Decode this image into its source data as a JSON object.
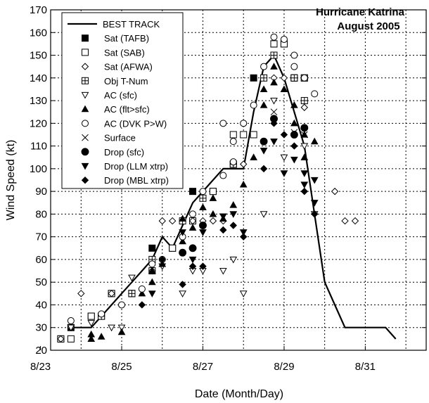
{
  "chart_data": {
    "type": "scatter",
    "title": "Hurricane Katrina",
    "subtitle": "August 2005",
    "xlabel": "Date (Month/Day)",
    "ylabel": "Wind Speed (kt)",
    "xlim": [
      "8/23 06:00",
      "9/1 12:00"
    ],
    "ylim": [
      20,
      170
    ],
    "xticks": [
      "8/23",
      "8/25",
      "8/27",
      "8/29",
      "8/31"
    ],
    "yticks": [
      20,
      30,
      40,
      50,
      60,
      70,
      80,
      90,
      100,
      110,
      120,
      130,
      140,
      150,
      160,
      170
    ],
    "grid": "dashed",
    "legend_position": "top-left",
    "legend": [
      "BEST TRACK",
      "Sat (TAFB)",
      "Sat (SAB)",
      "Sat (AFWA)",
      "Obj T-Num",
      "AC (sfc)",
      "AC (flt>sfc)",
      "AC (DVK P>W)",
      "Surface",
      "Drop (sfc)",
      "Drop (LLM xtrp)",
      "Drop (MBL xtrp)"
    ],
    "best_track": [
      [
        "8/23 18:00",
        30
      ],
      [
        "8/24 00:00",
        30
      ],
      [
        "8/24 06:00",
        30
      ],
      [
        "8/24 12:00",
        35
      ],
      [
        "8/24 18:00",
        40
      ],
      [
        "8/25 00:00",
        45
      ],
      [
        "8/25 06:00",
        50
      ],
      [
        "8/25 12:00",
        55
      ],
      [
        "8/25 18:00",
        60
      ],
      [
        "8/26 00:00",
        70
      ],
      [
        "8/26 06:00",
        65
      ],
      [
        "8/26 12:00",
        75
      ],
      [
        "8/26 18:00",
        85
      ],
      [
        "8/27 00:00",
        90
      ],
      [
        "8/27 06:00",
        95
      ],
      [
        "8/27 12:00",
        100
      ],
      [
        "8/27 18:00",
        100
      ],
      [
        "8/28 00:00",
        100
      ],
      [
        "8/28 06:00",
        125
      ],
      [
        "8/28 12:00",
        145
      ],
      [
        "8/28 18:00",
        150
      ],
      [
        "8/29 00:00",
        140
      ],
      [
        "8/29 06:00",
        125
      ],
      [
        "8/29 12:00",
        110
      ],
      [
        "8/29 18:00",
        80
      ],
      [
        "8/30 00:00",
        50
      ],
      [
        "8/30 06:00",
        40
      ],
      [
        "8/30 12:00",
        30
      ],
      [
        "8/30 18:00",
        30
      ],
      [
        "8/31 00:00",
        30
      ],
      [
        "8/31 06:00",
        30
      ],
      [
        "8/31 12:00",
        30
      ],
      [
        "8/31 18:00",
        25
      ]
    ],
    "series": [
      {
        "name": "Sat (TAFB)",
        "points": [
          [
            "8/23 12:00",
            25
          ],
          [
            "8/23 18:00",
            30
          ],
          [
            "8/24 06:00",
            35
          ],
          [
            "8/24 12:00",
            35
          ],
          [
            "8/24 18:00",
            45
          ],
          [
            "8/25 06:00",
            45
          ],
          [
            "8/25 18:00",
            65
          ],
          [
            "8/26 06:00",
            65
          ],
          [
            "8/26 18:00",
            90
          ],
          [
            "8/27 06:00",
            90
          ],
          [
            "8/27 18:00",
            102
          ],
          [
            "8/28 06:00",
            140
          ],
          [
            "8/28 18:00",
            155
          ],
          [
            "8/29 00:00",
            155
          ],
          [
            "8/29 06:00",
            140
          ],
          [
            "8/29 12:00",
            140
          ]
        ]
      },
      {
        "name": "Sat (SAB)",
        "points": [
          [
            "8/23 12:00",
            25
          ],
          [
            "8/23 18:00",
            25
          ],
          [
            "8/24 06:00",
            35
          ],
          [
            "8/24 18:00",
            45
          ],
          [
            "8/25 06:00",
            45
          ],
          [
            "8/25 18:00",
            55
          ],
          [
            "8/26 06:00",
            65
          ],
          [
            "8/26 18:00",
            77
          ],
          [
            "8/27 06:00",
            90
          ],
          [
            "8/27 18:00",
            115
          ],
          [
            "8/28 00:00",
            115
          ],
          [
            "8/28 06:00",
            115
          ],
          [
            "8/28 18:00",
            155
          ],
          [
            "8/29 00:00",
            155
          ],
          [
            "8/29 06:00",
            140
          ],
          [
            "8/29 12:00",
            140
          ]
        ]
      },
      {
        "name": "Sat (AFWA)",
        "points": [
          [
            "8/23 12:00",
            25
          ],
          [
            "8/23 18:00",
            30
          ],
          [
            "8/24 00:00",
            45
          ],
          [
            "8/24 12:00",
            35
          ],
          [
            "8/24 18:00",
            45
          ],
          [
            "8/25 06:00",
            45
          ],
          [
            "8/25 18:00",
            55
          ],
          [
            "8/26 00:00",
            77
          ],
          [
            "8/26 06:00",
            77
          ],
          [
            "8/26 12:00",
            77
          ],
          [
            "8/26 18:00",
            77
          ],
          [
            "8/27 00:00",
            77
          ],
          [
            "8/27 06:00",
            77
          ],
          [
            "8/27 12:00",
            77
          ],
          [
            "8/27 18:00",
            102
          ],
          [
            "8/28 00:00",
            102
          ],
          [
            "8/28 12:00",
            140
          ],
          [
            "8/28 18:00",
            140
          ],
          [
            "8/29 00:00",
            140
          ],
          [
            "8/29 12:00",
            127
          ],
          [
            "8/30 06:00",
            90
          ],
          [
            "8/30 12:00",
            77
          ],
          [
            "8/30 18:00",
            77
          ]
        ]
      },
      {
        "name": "Obj T-Num",
        "points": [
          [
            "8/24 12:00",
            35
          ],
          [
            "8/25 06:00",
            45
          ],
          [
            "8/25 18:00",
            60
          ],
          [
            "8/26 12:00",
            77
          ],
          [
            "8/27 00:00",
            87
          ],
          [
            "8/27 18:00",
            102
          ],
          [
            "8/28 12:00",
            140
          ],
          [
            "8/28 18:00",
            150
          ],
          [
            "8/29 06:00",
            140
          ],
          [
            "8/29 12:00",
            130
          ]
        ]
      },
      {
        "name": "AC (sfc)",
        "points": [
          [
            "8/23 18:00",
            30
          ],
          [
            "8/24 06:00",
            32
          ],
          [
            "8/24 18:00",
            30
          ],
          [
            "8/25 00:00",
            30
          ],
          [
            "8/25 06:00",
            52
          ],
          [
            "8/26 00:00",
            57
          ],
          [
            "8/26 12:00",
            45
          ],
          [
            "8/26 18:00",
            55
          ],
          [
            "8/27 00:00",
            55
          ],
          [
            "8/27 12:00",
            55
          ],
          [
            "8/27 18:00",
            60
          ],
          [
            "8/28 00:00",
            45
          ],
          [
            "8/28 18:00",
            130
          ],
          [
            "8/29 00:00",
            105
          ],
          [
            "8/29 12:00",
            110
          ],
          [
            "8/29 18:00",
            80
          ],
          [
            "8/28 12:00",
            80
          ]
        ]
      },
      {
        "name": "AC (flt>sfc)",
        "points": [
          [
            "8/24 06:00",
            27
          ],
          [
            "8/24 06:00",
            25
          ],
          [
            "8/24 12:00",
            26
          ],
          [
            "8/25 00:00",
            28
          ],
          [
            "8/25 12:00",
            45
          ],
          [
            "8/25 18:00",
            50
          ],
          [
            "8/25 18:00",
            55
          ],
          [
            "8/26 00:00",
            58
          ],
          [
            "8/26 12:00",
            78
          ],
          [
            "8/26 12:00",
            68
          ],
          [
            "8/26 18:00",
            74
          ],
          [
            "8/27 00:00",
            83
          ],
          [
            "8/27 06:00",
            87
          ],
          [
            "8/27 06:00",
            80
          ],
          [
            "8/27 12:00",
            78
          ],
          [
            "8/27 18:00",
            84
          ],
          [
            "8/28 00:00",
            93
          ],
          [
            "8/28 06:00",
            105
          ],
          [
            "8/28 12:00",
            135
          ],
          [
            "8/28 12:00",
            128
          ],
          [
            "8/28 18:00",
            145
          ],
          [
            "8/28 18:00",
            138
          ],
          [
            "8/29 00:00",
            135
          ],
          [
            "8/29 06:00",
            128
          ],
          [
            "8/29 06:00",
            120
          ],
          [
            "8/29 12:00",
            115
          ],
          [
            "8/29 12:00",
            105
          ],
          [
            "8/29 18:00",
            112
          ]
        ]
      },
      {
        "name": "AC (DVK P>W)",
        "points": [
          [
            "8/23 18:00",
            33
          ],
          [
            "8/24 12:00",
            36
          ],
          [
            "8/25 00:00",
            40
          ],
          [
            "8/25 12:00",
            47
          ],
          [
            "8/25 18:00",
            58
          ],
          [
            "8/26 00:00",
            60
          ],
          [
            "8/26 12:00",
            70
          ],
          [
            "8/26 18:00",
            80
          ],
          [
            "8/27 00:00",
            90
          ],
          [
            "8/27 12:00",
            97
          ],
          [
            "8/27 18:00",
            103
          ],
          [
            "8/28 00:00",
            120
          ],
          [
            "8/28 06:00",
            128
          ],
          [
            "8/28 12:00",
            145
          ],
          [
            "8/28 18:00",
            158
          ],
          [
            "8/29 00:00",
            157
          ],
          [
            "8/29 06:00",
            150
          ],
          [
            "8/29 06:00",
            145
          ],
          [
            "8/29 12:00",
            140
          ],
          [
            "8/29 18:00",
            133
          ],
          [
            "8/27 12:00",
            120
          ],
          [
            "8/27 18:00",
            112
          ]
        ]
      },
      {
        "name": "Surface",
        "points": [
          [
            "8/28 18:00",
            125
          ],
          [
            "8/29 06:00",
            116
          ],
          [
            "8/29 12:00",
            115
          ]
        ]
      },
      {
        "name": "Drop (sfc)",
        "points": [
          [
            "8/26 12:00",
            63
          ],
          [
            "8/26 18:00",
            65
          ],
          [
            "8/27 00:00",
            75
          ],
          [
            "8/28 12:00",
            112
          ],
          [
            "8/28 18:00",
            122
          ],
          [
            "8/29 06:00",
            115
          ],
          [
            "8/29 12:00",
            118
          ]
        ]
      },
      {
        "name": "Drop (LLM xtrp)",
        "points": [
          [
            "8/25 18:00",
            45
          ],
          [
            "8/26 12:00",
            72
          ],
          [
            "8/26 18:00",
            60
          ],
          [
            "8/27 00:00",
            72
          ],
          [
            "8/27 12:00",
            79
          ],
          [
            "8/27 18:00",
            80
          ],
          [
            "8/28 00:00",
            72
          ],
          [
            "8/28 12:00",
            108
          ],
          [
            "8/28 18:00",
            112
          ],
          [
            "8/29 00:00",
            98
          ],
          [
            "8/29 06:00",
            104
          ],
          [
            "8/29 12:00",
            93
          ],
          [
            "8/29 18:00",
            85
          ],
          [
            "8/29 12:00",
            98
          ],
          [
            "8/29 18:00",
            95
          ]
        ]
      },
      {
        "name": "Drop (MBL xtrp)",
        "points": [
          [
            "8/25 12:00",
            40
          ],
          [
            "8/26 00:00",
            60
          ],
          [
            "8/26 12:00",
            49
          ],
          [
            "8/26 18:00",
            57
          ],
          [
            "8/27 00:00",
            57
          ],
          [
            "8/27 12:00",
            73
          ],
          [
            "8/27 18:00",
            75
          ],
          [
            "8/28 00:00",
            70
          ],
          [
            "8/28 12:00",
            100
          ],
          [
            "8/28 18:00",
            120
          ],
          [
            "8/29 00:00",
            115
          ],
          [
            "8/29 06:00",
            110
          ],
          [
            "8/29 12:00",
            90
          ],
          [
            "8/29 18:00",
            80
          ]
        ]
      }
    ]
  }
}
